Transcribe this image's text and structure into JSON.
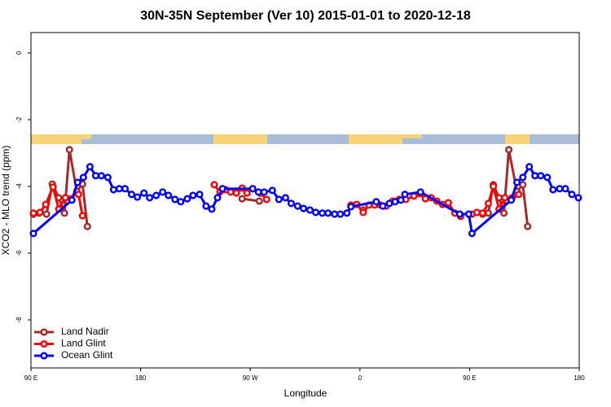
{
  "chart_data": {
    "type": "line",
    "title": "30N-35N September (Ver 10)   2015-01-01 to 2020-12-18",
    "xlabel": "Longitude",
    "ylabel": "XCO2 - MLO trend (ppm)",
    "xlim": [
      90,
      540
    ],
    "ylim": [
      -9.44,
      0.61
    ],
    "xticks": [
      {
        "value": 90,
        "label": "90 E"
      },
      {
        "value": 180,
        "label": "180"
      },
      {
        "value": 270,
        "label": "90 W"
      },
      {
        "value": 360,
        "label": "0"
      },
      {
        "value": 450,
        "label": "90 E"
      },
      {
        "value": 540,
        "label": "180"
      }
    ],
    "yticks": [
      0,
      -2,
      -4,
      -6,
      -8
    ],
    "legend": "bottom-left",
    "series": [
      {
        "name": "Land Nadir",
        "color": "#a52a2a",
        "x": [
          92.0,
          96.7,
          102.8,
          107.5,
          112.8,
          117.5,
          121.6,
          127.6,
          132.3,
          136.3,
          200,
          263.3,
          277.4,
          380,
          362.7,
          500,
          460.7,
          465.4,
          469.5,
          474.2,
          478.2,
          482.2,
          488.9,
          493.7,
          497.7
        ],
        "values": [
          -4.83,
          -4.8,
          -4.83,
          -3.93,
          -4.34,
          -4.8,
          -2.9,
          -4.15,
          -3.93,
          -5.2,
          null,
          -4.37,
          -4.44,
          null,
          -4.71,
          null,
          -4.83,
          -4.8,
          -3.95,
          -4.34,
          -4.8,
          -2.9,
          -4.15,
          -3.95,
          -5.2
        ]
      },
      {
        "name": "Land Glint",
        "color": "#ff0000",
        "x": [
          92.0,
          97.4,
          102.1,
          108.1,
          112.8,
          118.2,
          129.0,
          132.3,
          180,
          240.4,
          245.1,
          249.8,
          253.9,
          258.6,
          263.3,
          267.3,
          272.0,
          278.1,
          283.4,
          320,
          352.6,
          357.3,
          362.7,
          367.4,
          372.1,
          376.8,
          381.5,
          386.9,
          392.2,
          397.6,
          404.3,
          409.0,
          413.7,
          418.4,
          423.1,
          427.8,
          432.5,
          437.9,
          442.6,
          447,
          452.0,
          456.0,
          460.7,
          465.4,
          469.5,
          474.2,
          478.9,
          484.9,
          490.3
        ],
        "values": [
          -4.8,
          -4.78,
          -4.54,
          -4.02,
          -4.68,
          -4.34,
          -4.24,
          -4.88,
          null,
          -3.95,
          -4.17,
          -4.1,
          -4.17,
          -4.2,
          -4.05,
          -4.2,
          -4.07,
          -4.2,
          -4.39,
          null,
          -4.56,
          -4.54,
          -4.78,
          -4.56,
          -4.56,
          -4.56,
          -4.59,
          -4.44,
          -4.39,
          -4.39,
          -4.29,
          -4.22,
          -4.37,
          -4.34,
          -4.44,
          -4.54,
          -4.49,
          -4.8,
          -4.9,
          null,
          -4.83,
          -4.78,
          -4.8,
          -4.51,
          -4.0,
          -4.68,
          -4.34,
          -4.34,
          -4.24
        ]
      },
      {
        "name": "Ocean Glint",
        "color": "#0000ff",
        "x": [
          92.0,
          123.6,
          128.3,
          133.0,
          138.4,
          143.1,
          147.8,
          153.1,
          157.8,
          162.5,
          167.2,
          172.6,
          177.3,
          182.7,
          187.4,
          192.8,
          198.1,
          202.8,
          208.2,
          212.9,
          218.3,
          223.0,
          228.4,
          233.7,
          238.4,
          243.1,
          247.2,
          272.0,
          276.7,
          281.4,
          288.1,
          293.5,
          298.9,
          303.6,
          308.9,
          313.7,
          319.0,
          323.7,
          329.1,
          333.8,
          339.2,
          343.9,
          349.3,
          352.6,
          373.4,
          378.8,
          384.2,
          388.9,
          393.6,
          396.9,
          409.7,
          441.9,
          449.3,
          452.0,
          484.2,
          488.9,
          493.7,
          499.0,
          503.7,
          508.4,
          513.8,
          518.5,
          523.9,
          528.6,
          534.0,
          539.3
        ],
        "values": [
          -5.41,
          -4.41,
          -3.88,
          -3.73,
          -3.41,
          -3.68,
          -3.68,
          -3.73,
          -4.1,
          -4.07,
          -4.07,
          -4.24,
          -4.32,
          -4.2,
          -4.34,
          -4.27,
          -4.17,
          -4.27,
          -4.39,
          -4.46,
          -4.37,
          -4.27,
          -4.24,
          -4.59,
          -4.68,
          -4.34,
          -4.07,
          -4.07,
          -4.17,
          -4.17,
          -4.12,
          -4.39,
          -4.34,
          -4.51,
          -4.59,
          -4.66,
          -4.71,
          -4.78,
          -4.8,
          -4.8,
          -4.83,
          -4.83,
          -4.8,
          -4.61,
          -4.46,
          -4.59,
          -4.51,
          -4.46,
          -4.41,
          -4.24,
          -4.17,
          -4.83,
          -4.83,
          -5.41,
          -4.41,
          -3.88,
          -3.73,
          -3.41,
          -3.68,
          -3.68,
          -3.73,
          -4.1,
          -4.07,
          -4.07,
          -4.24,
          -4.34
        ]
      }
    ]
  }
}
